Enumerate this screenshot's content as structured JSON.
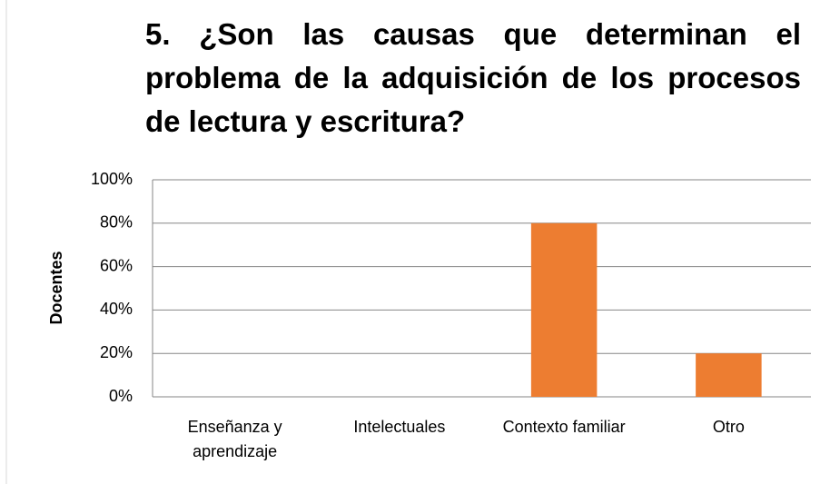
{
  "chart_data": {
    "type": "bar",
    "title": "5. ¿Son las causas que determinan el problema de la adquisición de los procesos de lectura y escritura?",
    "y_label": "Docentes",
    "categories": [
      "Enseñanza y aprendizaje",
      "Intelectuales",
      "Contexto familiar",
      "Otro"
    ],
    "values": [
      0,
      0,
      80,
      20
    ],
    "color": "#ed7d31",
    "ylim": [
      0,
      100
    ],
    "yticks": [
      {
        "value": 0,
        "label": "0%"
      },
      {
        "value": 20,
        "label": "20%"
      },
      {
        "value": 40,
        "label": "40%"
      },
      {
        "value": 60,
        "label": "60%"
      },
      {
        "value": 80,
        "label": "80%"
      },
      {
        "value": 100,
        "label": "100%"
      }
    ],
    "grid": true
  }
}
